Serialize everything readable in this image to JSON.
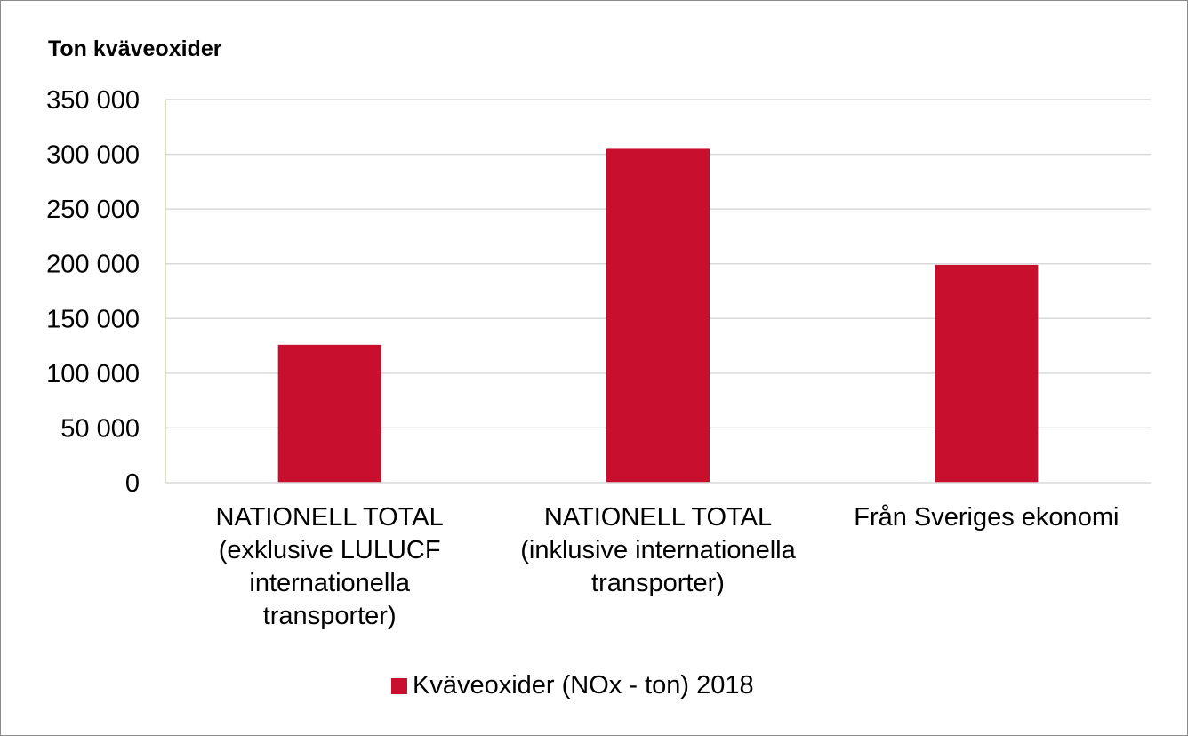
{
  "chart_data": {
    "type": "bar",
    "title": "",
    "ylabel": "Ton kväveoxider",
    "xlabel": "",
    "categories": [
      [
        "NATIONELL TOTAL",
        "(exklusive LULUCF",
        "internationella",
        "transporter)"
      ],
      [
        "NATIONELL TOTAL",
        "(inklusive internationella",
        "transporter)"
      ],
      [
        "Från Sveriges ekonomi"
      ]
    ],
    "series": [
      {
        "name": "Kväveoxider (NOx - ton) 2018",
        "values": [
          126000,
          305000,
          199000
        ],
        "color": "#c8102e"
      }
    ],
    "ylim": [
      0,
      350000
    ],
    "yticks": [
      0,
      50000,
      100000,
      150000,
      200000,
      250000,
      300000,
      350000
    ],
    "ytick_labels": [
      "0",
      "50 000",
      "100 000",
      "150 000",
      "200 000",
      "250 000",
      "300 000",
      "350 000"
    ],
    "grid": true,
    "legend_position": "bottom"
  }
}
